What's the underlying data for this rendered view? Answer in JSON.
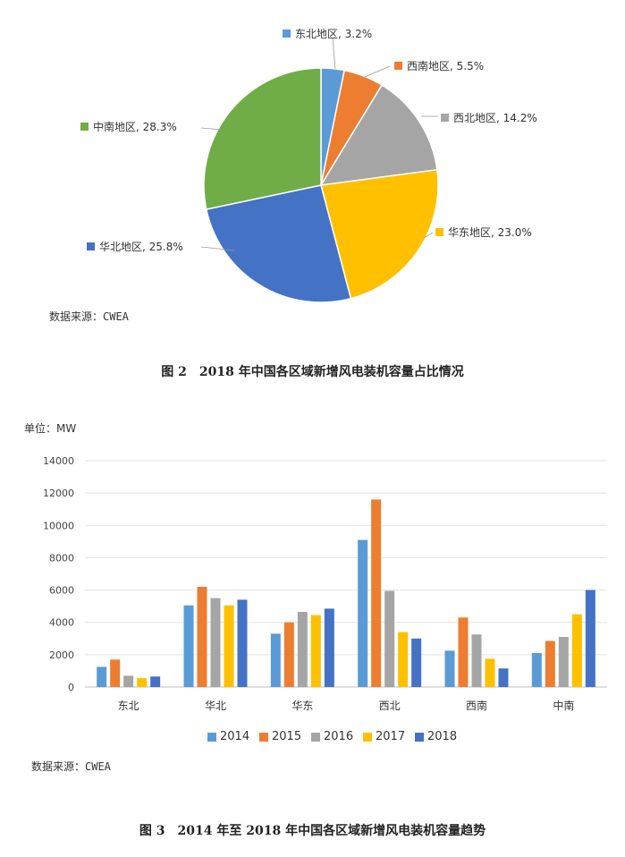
{
  "pie": {
    "source_label": "数据来源：CWEA",
    "caption": "图 2　2018 年中国各区域新增风电装机容量占比情况",
    "chart_data": {
      "type": "pie",
      "slices": [
        {
          "label": "东北地区, 3.2%",
          "value": 3.2,
          "color": "#5B9BD5"
        },
        {
          "label": "西南地区, 5.5%",
          "value": 5.5,
          "color": "#ED7D31"
        },
        {
          "label": "西北地区, 14.2%",
          "value": 14.2,
          "color": "#A5A5A5"
        },
        {
          "label": "华东地区, 23.0%",
          "value": 23.0,
          "color": "#FFC000"
        },
        {
          "label": "华北地区, 25.8%",
          "value": 25.8,
          "color": "#4472C4"
        },
        {
          "label": "中南地区, 28.3%",
          "value": 28.3,
          "color": "#70AD47"
        }
      ]
    }
  },
  "bar": {
    "unit_label": "单位：MW",
    "source_label": "数据来源：CWEA",
    "caption": "图 3　2014 年至 2018 年中国各区域新增风电装机容量趋势",
    "chart_data": {
      "type": "bar",
      "categories": [
        "东北",
        "华北",
        "华东",
        "西北",
        "西南",
        "中南"
      ],
      "series": [
        {
          "name": "2014",
          "color": "#5B9BD5",
          "values": [
            1250,
            5050,
            3300,
            9100,
            2250,
            2100
          ]
        },
        {
          "name": "2015",
          "color": "#ED7D31",
          "values": [
            1700,
            6200,
            4000,
            11600,
            4300,
            2850
          ]
        },
        {
          "name": "2016",
          "color": "#A5A5A5",
          "values": [
            700,
            5500,
            4650,
            5950,
            3250,
            3100
          ]
        },
        {
          "name": "2017",
          "color": "#FFC000",
          "values": [
            550,
            5050,
            4450,
            3400,
            1750,
            4500
          ]
        },
        {
          "name": "2018",
          "color": "#4472C4",
          "values": [
            650,
            5400,
            4850,
            3000,
            1150,
            6000
          ]
        }
      ],
      "ylim": [
        0,
        14000
      ],
      "yticks": [
        "0",
        "2000",
        "4000",
        "6000",
        "8000",
        "10000",
        "12000",
        "14000"
      ],
      "grid": true,
      "legend": "bottom"
    }
  }
}
